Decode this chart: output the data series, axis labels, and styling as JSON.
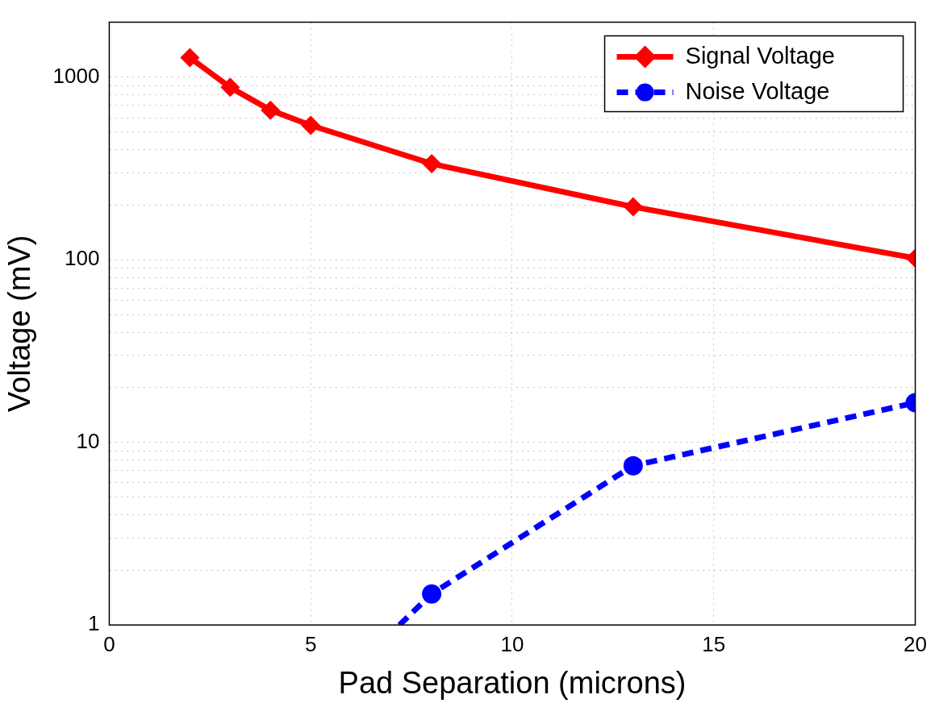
{
  "chart_data": {
    "type": "line",
    "xlabel": "Pad Separation (microns)",
    "ylabel": "Voltage (mV)",
    "xlim": [
      0,
      20
    ],
    "xticks": [
      0,
      5,
      10,
      15,
      20
    ],
    "ylim": [
      1,
      2000
    ],
    "log": "y",
    "yticks": [
      1,
      {
        "value": 2,
        "label": null
      },
      {
        "value": 3,
        "label": null
      },
      {
        "value": 4,
        "label": null
      },
      {
        "value": 5,
        "label": null
      },
      {
        "value": 6,
        "label": null
      },
      {
        "value": 7,
        "label": null
      },
      {
        "value": 8,
        "label": null
      },
      {
        "value": 9,
        "label": null
      },
      10,
      {
        "value": 20,
        "label": null
      },
      {
        "value": 30,
        "label": null
      },
      {
        "value": 40,
        "label": null
      },
      {
        "value": 50,
        "label": null
      },
      {
        "value": 60,
        "label": null
      },
      {
        "value": 70,
        "label": null
      },
      {
        "value": 80,
        "label": null
      },
      {
        "value": 90,
        "label": null
      },
      100,
      {
        "value": 200,
        "label": null
      },
      {
        "value": 300,
        "label": null
      },
      {
        "value": 400,
        "label": null
      },
      {
        "value": 500,
        "label": null
      },
      {
        "value": 600,
        "label": null
      },
      {
        "value": 700,
        "label": null
      },
      {
        "value": 800,
        "label": null
      },
      {
        "value": 900,
        "label": null
      },
      1000,
      {
        "value": 2000,
        "label": null
      }
    ],
    "grid": true,
    "legend": "top right",
    "series": [
      {
        "name": "Signal Voltage",
        "color": "#ff0000",
        "marker": "diamond",
        "line_style": "solid",
        "x": [
          2,
          3,
          4,
          5,
          8,
          13,
          20
        ],
        "values": [
          1280,
          880,
          660,
          545,
          336,
          195,
          102
        ]
      },
      {
        "name": "Noise Voltage",
        "color": "#0000ff",
        "marker": "circle",
        "line_style": "dashed",
        "x": [
          7.2,
          8,
          13,
          20
        ],
        "values": [
          1,
          1.48,
          7.45,
          16.5
        ]
      }
    ]
  }
}
